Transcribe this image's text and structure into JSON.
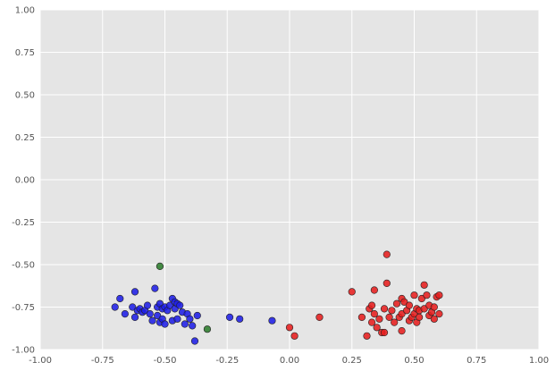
{
  "chart_data": {
    "type": "scatter",
    "title": "",
    "xlabel": "",
    "ylabel": "",
    "xlim": [
      -1.0,
      1.0
    ],
    "ylim": [
      -1.0,
      1.0
    ],
    "grid": true,
    "background": "#e5e5e5",
    "x_ticks": [
      "-1.00",
      "-0.75",
      "-0.50",
      "-0.25",
      "0.00",
      "0.25",
      "0.50",
      "0.75",
      "1.00"
    ],
    "x_tick_values": [
      -1.0,
      -0.75,
      -0.5,
      -0.25,
      0.0,
      0.25,
      0.5,
      0.75,
      1.0
    ],
    "y_ticks": [
      "1.00",
      "0.75",
      "0.50",
      "0.25",
      "0.00",
      "-0.25",
      "-0.50",
      "-0.75",
      "-1.00"
    ],
    "y_tick_values": [
      1.0,
      0.75,
      0.5,
      0.25,
      0.0,
      -0.25,
      -0.5,
      -0.75,
      -1.0
    ],
    "series": [
      {
        "color": "#1f1fe6",
        "x": [
          -0.7,
          -0.68,
          -0.66,
          -0.63,
          -0.62,
          -0.62,
          -0.61,
          -0.6,
          -0.59,
          -0.58,
          -0.57,
          -0.56,
          -0.55,
          -0.54,
          -0.53,
          -0.53,
          -0.52,
          -0.52,
          -0.51,
          -0.51,
          -0.5,
          -0.5,
          -0.49,
          -0.48,
          -0.47,
          -0.47,
          -0.46,
          -0.46,
          -0.45,
          -0.45,
          -0.44,
          -0.43,
          -0.42,
          -0.41,
          -0.4,
          -0.39,
          -0.38,
          -0.37,
          -0.24,
          -0.2,
          -0.07
        ],
        "y": [
          -0.75,
          -0.7,
          -0.79,
          -0.75,
          -0.66,
          -0.81,
          -0.77,
          -0.76,
          -0.78,
          -0.77,
          -0.74,
          -0.79,
          -0.83,
          -0.64,
          -0.75,
          -0.8,
          -0.73,
          -0.84,
          -0.76,
          -0.82,
          -0.75,
          -0.85,
          -0.77,
          -0.74,
          -0.7,
          -0.83,
          -0.72,
          -0.76,
          -0.82,
          -0.73,
          -0.74,
          -0.78,
          -0.85,
          -0.79,
          -0.82,
          -0.86,
          -0.95,
          -0.8,
          -0.81,
          -0.82,
          -0.83
        ]
      },
      {
        "color": "#2e7d2e",
        "x": [
          -0.52,
          -0.33
        ],
        "y": [
          -0.51,
          -0.88
        ]
      },
      {
        "color": "#e61f1f",
        "x": [
          0.0,
          0.02,
          0.12,
          0.25,
          0.29,
          0.31,
          0.32,
          0.33,
          0.33,
          0.34,
          0.34,
          0.35,
          0.36,
          0.37,
          0.38,
          0.38,
          0.39,
          0.39,
          0.4,
          0.41,
          0.42,
          0.43,
          0.44,
          0.45,
          0.45,
          0.45,
          0.46,
          0.47,
          0.48,
          0.48,
          0.49,
          0.5,
          0.5,
          0.51,
          0.51,
          0.52,
          0.52,
          0.53,
          0.54,
          0.54,
          0.55,
          0.56,
          0.56,
          0.57,
          0.58,
          0.58,
          0.59,
          0.6,
          0.6
        ],
        "y": [
          -0.87,
          -0.92,
          -0.81,
          -0.66,
          -0.81,
          -0.92,
          -0.76,
          -0.84,
          -0.74,
          -0.65,
          -0.79,
          -0.87,
          -0.82,
          -0.9,
          -0.76,
          -0.9,
          -0.61,
          -0.44,
          -0.81,
          -0.77,
          -0.84,
          -0.73,
          -0.81,
          -0.7,
          -0.79,
          -0.89,
          -0.72,
          -0.77,
          -0.83,
          -0.74,
          -0.81,
          -0.68,
          -0.79,
          -0.76,
          -0.84,
          -0.77,
          -0.81,
          -0.7,
          -0.62,
          -0.76,
          -0.68,
          -0.8,
          -0.74,
          -0.78,
          -0.75,
          -0.82,
          -0.69,
          -0.79,
          -0.68
        ]
      }
    ]
  }
}
